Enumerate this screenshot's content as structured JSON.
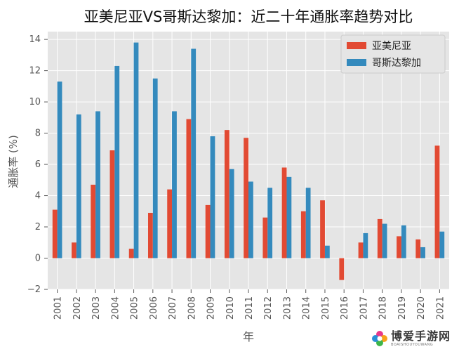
{
  "chart_data": {
    "type": "bar",
    "title": "亚美尼亚VS哥斯达黎加：近二十年通胀率趋势对比",
    "xlabel": "年",
    "ylabel": "通胀率 (%)",
    "ylim": [
      -2,
      14.5
    ],
    "yticks": [
      -2,
      0,
      2,
      4,
      6,
      8,
      10,
      12,
      14
    ],
    "ytick_labels": [
      "−2",
      "0",
      "2",
      "4",
      "6",
      "8",
      "10",
      "12",
      "14"
    ],
    "categories": [
      "2001",
      "2002",
      "2003",
      "2004",
      "2005",
      "2006",
      "2007",
      "2008",
      "2009",
      "2010",
      "2011",
      "2012",
      "2013",
      "2014",
      "2015",
      "2016",
      "2017",
      "2018",
      "2019",
      "2020",
      "2021"
    ],
    "series": [
      {
        "name": "亚美尼亚",
        "color": "#E24A33",
        "values": [
          3.1,
          1.0,
          4.7,
          6.9,
          0.6,
          2.9,
          4.4,
          8.9,
          3.4,
          8.2,
          7.7,
          2.6,
          5.8,
          3.0,
          3.7,
          -1.4,
          1.0,
          2.5,
          1.4,
          1.2,
          7.2
        ]
      },
      {
        "name": "哥斯达黎加",
        "color": "#348ABD",
        "values": [
          11.3,
          9.2,
          9.4,
          12.3,
          13.8,
          11.5,
          9.4,
          13.4,
          7.8,
          5.7,
          4.9,
          4.5,
          5.2,
          4.5,
          0.8,
          0.0,
          1.6,
          2.2,
          2.1,
          0.7,
          1.7
        ]
      }
    ],
    "grid": true,
    "legend_position": "top-right"
  },
  "watermark": {
    "main": "博爱手游网",
    "sub": "BOAISHOUYOUWANG"
  }
}
